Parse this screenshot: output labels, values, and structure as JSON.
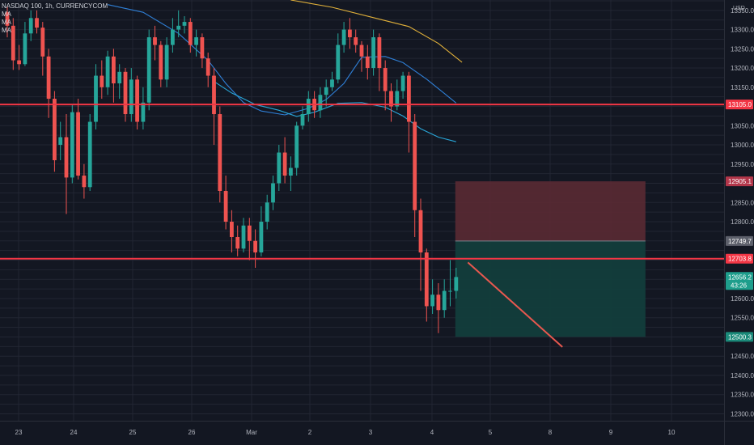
{
  "header": {
    "symbol_title": "NASDAQ 100, 1h, CURRENCYCOM",
    "indicators": [
      "MA",
      "MA",
      "MA"
    ],
    "currency": "USD"
  },
  "colors": {
    "background": "#131722",
    "grid": "#222633",
    "up_candle": "#26a69a",
    "down_candle": "#ef5350",
    "horizontal_line": "#f23645",
    "ma_long": "#e0b03a",
    "ma_mid": "#2f7fd6",
    "ma_short": "#29a6d8",
    "stop_zone": "#5a2a33",
    "target_zone": "#123d3c",
    "projection_line": "#e8584f",
    "axis_text": "#b2b5be"
  },
  "chart_data": {
    "type": "candlestick",
    "y_axis": {
      "ylim": [
        12282,
        13377
      ],
      "tick_labels": [
        "13350.0",
        "13300.0",
        "13250.0",
        "13200.0",
        "13150.0",
        "13050.0",
        "13000.0",
        "12950.0",
        "12850.0",
        "12800.0",
        "12600.0",
        "12550.0",
        "12450.0",
        "12400.0",
        "12350.0",
        "12300.0"
      ],
      "tick_values": [
        13350,
        13300,
        13250,
        13200,
        13150,
        13050,
        13000,
        12950,
        12850,
        12800,
        12600,
        12550,
        12450,
        12400,
        12350,
        12300
      ]
    },
    "x_axis": {
      "tick_labels": [
        "23",
        "24",
        "25",
        "26",
        "Mar",
        "2",
        "3",
        "4",
        "5",
        "8",
        "9",
        "10"
      ]
    },
    "horizontal_lines": [
      {
        "value": 13105.0,
        "label": "13105.0"
      },
      {
        "value": 12703.8,
        "label": "12703.8"
      }
    ],
    "price_labels": [
      {
        "value": 12905.1,
        "label": "12905.1",
        "kind": "stop"
      },
      {
        "value": 12749.7,
        "label": "12749.7",
        "kind": "entry"
      },
      {
        "value": 12656.2,
        "label": "12656.2",
        "sublabel": "43:26",
        "kind": "last"
      },
      {
        "value": 12500.3,
        "label": "12500.3",
        "kind": "target"
      }
    ],
    "position": {
      "type": "short",
      "entry": 12749.7,
      "stop": 12905.1,
      "target": 12500.3,
      "start_index": 76,
      "end_index": 106
    },
    "projection": {
      "from": [
        78,
        12694
      ],
      "to": [
        94,
        12474
      ]
    },
    "ma_long": [
      [
        48,
        13377
      ],
      [
        55,
        13358
      ],
      [
        62,
        13331
      ],
      [
        68,
        13308
      ],
      [
        73,
        13264
      ],
      [
        77,
        13215
      ]
    ],
    "ma_mid": [
      [
        17,
        13365
      ],
      [
        23,
        13345
      ],
      [
        29,
        13290
      ],
      [
        34,
        13220
      ],
      [
        37,
        13160
      ],
      [
        40,
        13110
      ],
      [
        43,
        13088
      ],
      [
        47,
        13078
      ],
      [
        51,
        13095
      ],
      [
        54,
        13118
      ],
      [
        57,
        13160
      ],
      [
        60,
        13228
      ],
      [
        64,
        13230
      ],
      [
        67,
        13214
      ],
      [
        71,
        13171
      ],
      [
        74,
        13134
      ],
      [
        76,
        13109
      ]
    ],
    "ma_short": [
      [
        35,
        13165
      ],
      [
        38,
        13135
      ],
      [
        42,
        13105
      ],
      [
        46,
        13090
      ],
      [
        49,
        13074
      ],
      [
        52,
        13085
      ],
      [
        56,
        13108
      ],
      [
        60,
        13110
      ],
      [
        64,
        13098
      ],
      [
        67,
        13075
      ],
      [
        70,
        13042
      ],
      [
        73,
        13020
      ],
      [
        76,
        13008
      ]
    ],
    "candles": [
      [
        13345,
        13310,
        13360,
        13280
      ],
      [
        13310,
        13220,
        13330,
        13195
      ],
      [
        13220,
        13210,
        13260,
        13195
      ],
      [
        13210,
        13290,
        13320,
        13205
      ],
      [
        13290,
        13330,
        13350,
        13270
      ],
      [
        13330,
        13305,
        13350,
        13290
      ],
      [
        13305,
        13230,
        13320,
        13180
      ],
      [
        13230,
        13120,
        13250,
        13070
      ],
      [
        13120,
        12960,
        13140,
        12930
      ],
      [
        13000,
        13020,
        13060,
        12960
      ],
      [
        13020,
        12915,
        13080,
        12820
      ],
      [
        12915,
        13085,
        13105,
        12900
      ],
      [
        13085,
        12920,
        13120,
        12910
      ],
      [
        12920,
        12890,
        12950,
        12860
      ],
      [
        12890,
        13060,
        13080,
        12880
      ],
      [
        13060,
        13180,
        13210,
        13040
      ],
      [
        13180,
        13150,
        13220,
        13120
      ],
      [
        13150,
        13230,
        13245,
        13130
      ],
      [
        13230,
        13160,
        13250,
        13110
      ],
      [
        13160,
        13190,
        13210,
        13120
      ],
      [
        13190,
        13080,
        13200,
        13060
      ],
      [
        13080,
        13170,
        13200,
        13060
      ],
      [
        13170,
        13060,
        13180,
        13040
      ],
      [
        13060,
        13110,
        13150,
        13040
      ],
      [
        13110,
        13280,
        13300,
        13090
      ],
      [
        13280,
        13260,
        13310,
        13220
      ],
      [
        13260,
        13170,
        13270,
        13150
      ],
      [
        13170,
        13260,
        13280,
        13150
      ],
      [
        13260,
        13300,
        13330,
        13240
      ],
      [
        13300,
        13310,
        13350,
        13280
      ],
      [
        13310,
        13320,
        13335,
        13290
      ],
      [
        13320,
        13260,
        13330,
        13240
      ],
      [
        13260,
        13280,
        13300,
        13230
      ],
      [
        13280,
        13225,
        13290,
        13200
      ],
      [
        13225,
        13180,
        13240,
        13150
      ],
      [
        13180,
        13080,
        13200,
        13000
      ],
      [
        13080,
        12880,
        13100,
        12850
      ],
      [
        12880,
        12800,
        12920,
        12780
      ],
      [
        12800,
        12760,
        12830,
        12720
      ],
      [
        12760,
        12730,
        12790,
        12710
      ],
      [
        12730,
        12790,
        12810,
        12720
      ],
      [
        12790,
        12750,
        12810,
        12700
      ],
      [
        12750,
        12720,
        12780,
        12680
      ],
      [
        12720,
        12800,
        12840,
        12710
      ],
      [
        12800,
        12850,
        12870,
        12780
      ],
      [
        12850,
        12900,
        12920,
        12830
      ],
      [
        12900,
        12980,
        13000,
        12880
      ],
      [
        12980,
        12920,
        13020,
        12900
      ],
      [
        12920,
        12940,
        12970,
        12880
      ],
      [
        12940,
        13050,
        13060,
        12920
      ],
      [
        13050,
        13080,
        13100,
        13040
      ],
      [
        13080,
        13120,
        13140,
        13060
      ],
      [
        13120,
        13090,
        13140,
        13070
      ],
      [
        13090,
        13130,
        13150,
        13070
      ],
      [
        13130,
        13150,
        13170,
        13100
      ],
      [
        13150,
        13170,
        13190,
        13140
      ],
      [
        13170,
        13260,
        13290,
        13160
      ],
      [
        13260,
        13300,
        13320,
        13240
      ],
      [
        13300,
        13280,
        13330,
        13250
      ],
      [
        13280,
        13260,
        13300,
        13240
      ],
      [
        13260,
        13230,
        13270,
        13190
      ],
      [
        13230,
        13200,
        13260,
        13170
      ],
      [
        13200,
        13280,
        13300,
        13180
      ],
      [
        13280,
        13200,
        13290,
        13140
      ],
      [
        13200,
        13140,
        13220,
        13090
      ],
      [
        13140,
        13100,
        13160,
        13060
      ],
      [
        13100,
        13140,
        13170,
        13090
      ],
      [
        13140,
        13180,
        13190,
        13120
      ],
      [
        13180,
        13060,
        13190,
        12980
      ],
      [
        13060,
        12830,
        13080,
        12760
      ],
      [
        12830,
        12720,
        12860,
        12620
      ],
      [
        12720,
        12580,
        12730,
        12540
      ],
      [
        12580,
        12610,
        12650,
        12560
      ],
      [
        12610,
        12570,
        12640,
        12510
      ],
      [
        12570,
        12620,
        12650,
        12550
      ],
      [
        12620,
        12620,
        12700,
        12580
      ],
      [
        12620,
        12656,
        12680,
        12600
      ]
    ]
  }
}
